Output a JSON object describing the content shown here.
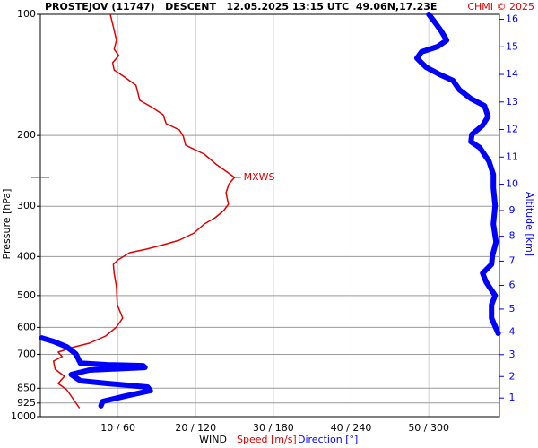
{
  "chart_data": {
    "type": "line",
    "title": "PROSTEJOV (11747)   DESCENT   12.05.2025 13:15 UTC  49.06N,17.23E",
    "credit": "CHMI © 2025",
    "y_label": "Pressure [hPa]",
    "y2_label": "Altitude [km]",
    "x_label": "WIND",
    "annotation": "MXWS",
    "log_y": true,
    "grid": true,
    "ylim": [
      1000,
      100
    ],
    "yticks": [
      100,
      200,
      300,
      400,
      500,
      600,
      700,
      850,
      925,
      1000
    ],
    "y2ticks": [
      1,
      2,
      3,
      4,
      5,
      6,
      7,
      8,
      9,
      10,
      11,
      12,
      13,
      14,
      15,
      16
    ],
    "xlim": [
      0,
      59.1
    ],
    "x2lim": [
      0,
      354.6
    ],
    "xticks": [
      {
        "value": 10,
        "label": "10 / 60"
      },
      {
        "value": 20,
        "label": "20 / 120"
      },
      {
        "value": 30,
        "label": "30 / 180"
      },
      {
        "value": 40,
        "label": "40 / 240"
      },
      {
        "value": 50,
        "label": "50 / 300"
      }
    ],
    "series": [
      {
        "name": "Speed [m/s]",
        "color": "#e00000",
        "pressure": [
          100,
          107.4,
          116.0,
          122.1,
          126.6,
          131.9,
          137.5,
          142.5,
          150.0,
          163.6,
          170.4,
          177.6,
          186.9,
          193.8,
          200.9,
          211.5,
          222.6,
          236.6,
          247.9,
          254.3,
          263.6,
          277.5,
          296.6,
          307.4,
          320.3,
          332.0,
          349.5,
          364.1,
          373.6,
          383.4,
          391.3,
          407.7,
          418.3,
          440.3,
          475.5,
          526.9,
          568.9,
          598.8,
          630.4,
          656.8,
          673.8,
          691.3,
          709.3,
          727.8,
          762.1,
          794.0,
          827.3,
          857.5,
          902.6,
          950.0
        ],
        "values": [
          9.0,
          9.4,
          9.8,
          9.5,
          10.1,
          9.3,
          9.5,
          10.7,
          12.3,
          12.8,
          14.4,
          15.8,
          16.2,
          17.9,
          18.4,
          18.7,
          21.1,
          22.7,
          24.2,
          25.0,
          24.3,
          23.9,
          24.2,
          23.6,
          22.5,
          21.1,
          19.8,
          17.9,
          15.9,
          13.6,
          11.5,
          10.0,
          9.4,
          9.5,
          9.8,
          9.9,
          10.6,
          9.8,
          8.4,
          6.3,
          4.0,
          2.3,
          2.8,
          1.7,
          1.9,
          3.1,
          2.3,
          3.4,
          4.2,
          5.0
        ]
      },
      {
        "name": "Direction [°]",
        "color": "#0000ff",
        "axis": "x2",
        "pressure": [
          100,
          104.7,
          110.2,
          116.0,
          120.3,
          124.0,
          128.6,
          135.3,
          141.0,
          146.1,
          153.9,
          162.0,
          168.7,
          179.4,
          188.9,
          198.9,
          207.2,
          214.6,
          231.8,
          250.2,
          270.0,
          299.0,
          332.0,
          368.0,
          397.7,
          418.3,
          440.3,
          463.6,
          499.8,
          526.9,
          568.9,
          620.6,
          null,
          637.0,
          650.0,
          670.5,
          698.5,
          736.0,
          743.0,
          746.8,
          754.5,
          766.0,
          786.0,
          814.6,
          827.3,
          844.4,
          861.9,
          889.0,
          916.7,
          940.0
        ],
        "values": [
          300.0,
          304.8,
          309.7,
          313.9,
          306.9,
          294.4,
          290.9,
          297.9,
          308.3,
          318.7,
          323.6,
          332.6,
          343.0,
          345.8,
          341.6,
          333.3,
          332.6,
          339.5,
          346.5,
          349.9,
          349.9,
          351.3,
          349.9,
          352.0,
          349.2,
          348.5,
          341.6,
          344.4,
          351.3,
          348.5,
          348.5,
          353.6,
          null,
          1.0,
          10.1,
          20.5,
          27.4,
          30.9,
          51.7,
          79.4,
          80.8,
          37.8,
          23.9,
          30.9,
          51.7,
          82.9,
          85.0,
          65.5,
          48.2,
          46.8
        ]
      }
    ]
  }
}
